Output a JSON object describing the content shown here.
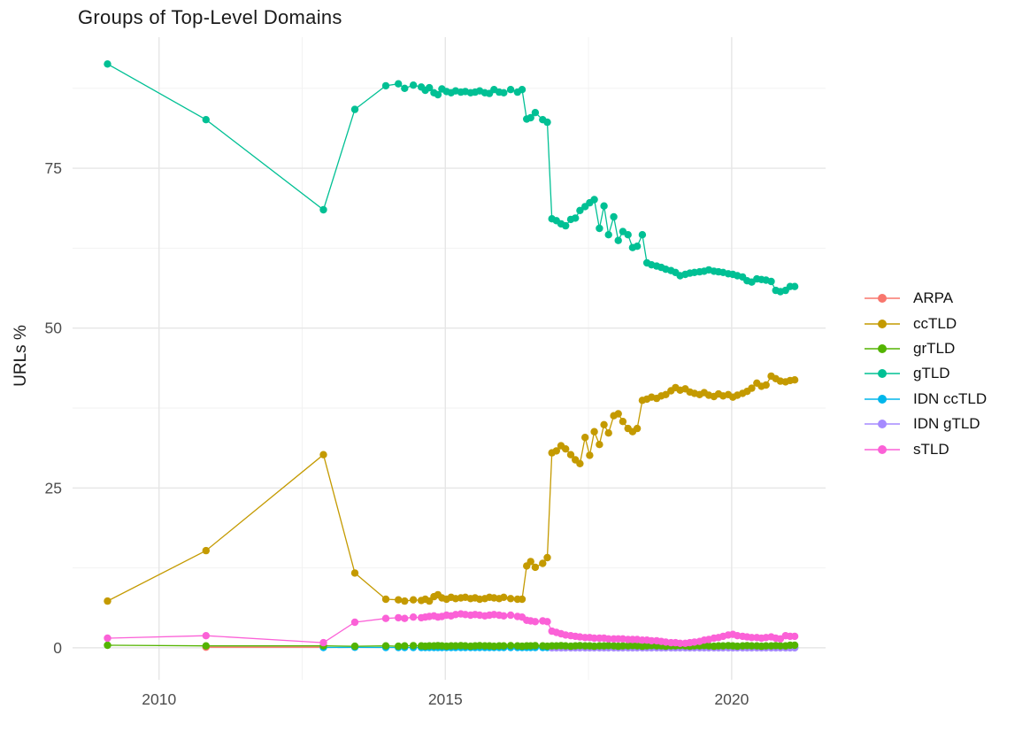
{
  "chart_data": {
    "type": "line",
    "title": "Groups of Top-Level Domains",
    "xlabel": "",
    "ylabel": "URLs %",
    "grid": true,
    "legend_position": "right",
    "x_ticks": [
      2010,
      2015,
      2020
    ],
    "x_minor_ticks": [
      2012.5,
      2017.5
    ],
    "y_ticks": [
      0,
      25,
      50,
      75
    ],
    "y_minor_ticks": [
      12.5,
      37.5,
      62.5,
      87.5
    ],
    "xlim": [
      2008.49,
      2021.64
    ],
    "ylim": [
      -5,
      95.5
    ],
    "x_dense": [
      2013.96,
      2014.18,
      2014.29,
      2014.44,
      2014.58,
      2014.65,
      2014.72,
      2014.8,
      2014.87,
      2014.94,
      2015.02,
      2015.1,
      2015.18,
      2015.27,
      2015.35,
      2015.44,
      2015.52,
      2015.6,
      2015.69,
      2015.77,
      2015.85,
      2015.94,
      2016.02,
      2016.14,
      2016.26,
      2016.34,
      2016.42,
      2016.49,
      2016.57,
      2016.7,
      2016.78,
      2016.86,
      2016.94,
      2017.02,
      2017.1,
      2017.19,
      2017.27,
      2017.35,
      2017.44,
      2017.52,
      2017.6,
      2017.69,
      2017.77,
      2017.85,
      2017.94,
      2018.02,
      2018.1,
      2018.19,
      2018.27,
      2018.35,
      2018.44,
      2018.52,
      2018.6,
      2018.69,
      2018.77,
      2018.85,
      2018.94,
      2019.02,
      2019.1,
      2019.19,
      2019.27,
      2019.35,
      2019.44,
      2019.52,
      2019.6,
      2019.69,
      2019.77,
      2019.85,
      2019.94,
      2020.02,
      2020.1,
      2020.19,
      2020.27,
      2020.35,
      2020.44,
      2020.52,
      2020.6,
      2020.69,
      2020.77,
      2020.85,
      2020.94,
      2021.02,
      2021.1
    ],
    "series": [
      {
        "name": "ARPA",
        "color": "#F8766D",
        "points": [
          [
            2010.82,
            0.1
          ],
          [
            2012.87,
            0.1
          ]
        ],
        "dense": null
      },
      {
        "name": "ccTLD",
        "color": "#C49A00",
        "points": [
          [
            2009.1,
            7.3
          ],
          [
            2010.82,
            15.2
          ],
          [
            2012.87,
            30.2
          ],
          [
            2013.42,
            11.7
          ]
        ],
        "dense": [
          7.6,
          7.5,
          7.3,
          7.5,
          7.4,
          7.6,
          7.3,
          8.0,
          8.3,
          7.8,
          7.6,
          7.9,
          7.7,
          7.8,
          7.9,
          7.7,
          7.8,
          7.6,
          7.7,
          7.9,
          7.8,
          7.7,
          7.9,
          7.7,
          7.6,
          7.6,
          12.8,
          13.5,
          12.6,
          13.2,
          14.1,
          30.5,
          30.8,
          31.6,
          31.1,
          30.2,
          29.4,
          28.8,
          32.9,
          30.1,
          33.8,
          31.8,
          34.9,
          33.6,
          36.3,
          36.6,
          35.4,
          34.3,
          33.8,
          34.3,
          38.7,
          38.9,
          39.2,
          39.0,
          39.4,
          39.6,
          40.2,
          40.7,
          40.3,
          40.5,
          40.0,
          39.8,
          39.6,
          39.9,
          39.5,
          39.3,
          39.7,
          39.4,
          39.6,
          39.2,
          39.5,
          39.8,
          40.1,
          40.6,
          41.4,
          40.9,
          41.1,
          42.5,
          42.1,
          41.7,
          41.6,
          41.8,
          41.9
        ]
      },
      {
        "name": "grTLD",
        "color": "#53B400",
        "points": [
          [
            2009.1,
            0.4
          ],
          [
            2010.82,
            0.3
          ],
          [
            2012.87,
            0.3
          ],
          [
            2013.42,
            0.25
          ]
        ],
        "dense": [
          0.3,
          0.25,
          0.3,
          0.35,
          0.3,
          0.25,
          0.3,
          0.3,
          0.35,
          0.3,
          0.25,
          0.3,
          0.3,
          0.35,
          0.3,
          0.25,
          0.3,
          0.35,
          0.3,
          0.3,
          0.25,
          0.3,
          0.3,
          0.35,
          0.3,
          0.25,
          0.3,
          0.3,
          0.35,
          0.3,
          0.25,
          0.3,
          0.3,
          0.35,
          0.3,
          0.25,
          0.3,
          0.35,
          0.3,
          0.3,
          0.25,
          0.3,
          0.3,
          0.35,
          0.3,
          0.25,
          0.3,
          0.3,
          0.35,
          0.3,
          0.25,
          0.3,
          0.35,
          0.3,
          0.3,
          0.25,
          0.3,
          0.3,
          0.35,
          0.3,
          0.25,
          0.3,
          0.3,
          0.35,
          0.3,
          0.25,
          0.3,
          0.3,
          0.35,
          0.3,
          0.25,
          0.3,
          0.35,
          0.3,
          0.3,
          0.25,
          0.3,
          0.3,
          0.35,
          0.3,
          0.3,
          0.4,
          0.4
        ]
      },
      {
        "name": "gTLD",
        "color": "#00C094",
        "points": [
          [
            2009.1,
            91.3
          ],
          [
            2010.82,
            82.6
          ],
          [
            2012.87,
            68.5
          ],
          [
            2013.42,
            84.2
          ]
        ],
        "dense": [
          87.9,
          88.2,
          87.5,
          88.0,
          87.7,
          87.2,
          87.6,
          86.8,
          86.5,
          87.4,
          87.0,
          86.8,
          87.1,
          86.9,
          87.0,
          86.8,
          86.9,
          87.1,
          86.8,
          86.7,
          87.3,
          86.9,
          86.8,
          87.3,
          86.9,
          87.3,
          82.7,
          82.9,
          83.7,
          82.6,
          82.2,
          67.1,
          66.8,
          66.3,
          66.0,
          67.0,
          67.2,
          68.4,
          69.0,
          69.6,
          70.1,
          65.6,
          69.1,
          64.6,
          67.4,
          63.7,
          65.1,
          64.6,
          62.6,
          62.8,
          64.6,
          60.2,
          59.9,
          59.7,
          59.5,
          59.2,
          59.0,
          58.7,
          58.2,
          58.4,
          58.6,
          58.7,
          58.8,
          58.9,
          59.1,
          58.9,
          58.8,
          58.7,
          58.5,
          58.4,
          58.2,
          58.0,
          57.4,
          57.2,
          57.7,
          57.6,
          57.5,
          57.3,
          55.9,
          55.7,
          55.9,
          56.5,
          56.5
        ]
      },
      {
        "name": "IDN ccTLD",
        "color": "#00B6EB",
        "points": [
          [
            2012.87,
            0.05
          ],
          [
            2013.42,
            0.08
          ]
        ],
        "dense": [
          0.05,
          0.05,
          0.05,
          0.05,
          0.05,
          0.05,
          0.05,
          0.05,
          0.05,
          0.05,
          0.05,
          0.05,
          0.05,
          0.05,
          0.05,
          0.05,
          0.05,
          0.05,
          0.05,
          0.05,
          0.05,
          0.05,
          0.05,
          0.05,
          0.05,
          0.05,
          0.05,
          0.05,
          0.05,
          0.05,
          0.05,
          0.05,
          0.05,
          0.05,
          0.05,
          0.05,
          0.05,
          0.05,
          0.05,
          0.05,
          0.05,
          0.05,
          0.05,
          0.05,
          0.05,
          0.05,
          0.05,
          0.05,
          0.05,
          0.05,
          0.05,
          0.05,
          0.05,
          0.05,
          0.05,
          0.05,
          0.05,
          0.05,
          0.05,
          0.05,
          0.05,
          0.05,
          0.05,
          0.05,
          0.05,
          0.05,
          0.05,
          0.05,
          0.05,
          0.05,
          0.05,
          0.05,
          0.05,
          0.05,
          0.05,
          0.05,
          0.05,
          0.05,
          0.05,
          0.05,
          0.05,
          0.05,
          0.05
        ]
      },
      {
        "name": "IDN gTLD",
        "color": "#A58AFF",
        "points": [],
        "dense": [
          null,
          null,
          null,
          null,
          null,
          null,
          null,
          null,
          null,
          null,
          null,
          null,
          null,
          null,
          null,
          null,
          null,
          null,
          null,
          null,
          null,
          null,
          null,
          null,
          null,
          null,
          null,
          null,
          null,
          null,
          null,
          0.0,
          0.0,
          0.0,
          0.0,
          0.0,
          0.0,
          0.0,
          0.0,
          0.0,
          0.0,
          0.0,
          0.0,
          0.0,
          0.0,
          0.0,
          0.0,
          0.0,
          0.0,
          0.0,
          0.0,
          0.0,
          0.0,
          0.0,
          0.0,
          0.0,
          0.0,
          0.0,
          0.0,
          0.0,
          0.0,
          0.0,
          0.0,
          0.0,
          0.0,
          0.0,
          0.0,
          0.0,
          0.0,
          0.0,
          0.0,
          0.0,
          0.0,
          0.0,
          0.0,
          0.0,
          0.0,
          0.0,
          0.0,
          0.0,
          0.0,
          0.0,
          0.0
        ]
      },
      {
        "name": "sTLD",
        "color": "#FB61D7",
        "points": [
          [
            2009.1,
            1.5
          ],
          [
            2010.82,
            1.9
          ],
          [
            2012.87,
            0.8
          ],
          [
            2013.42,
            4.0
          ]
        ],
        "dense": [
          4.6,
          4.7,
          4.6,
          4.8,
          4.7,
          4.8,
          4.9,
          5.0,
          4.8,
          4.9,
          5.1,
          5.0,
          5.2,
          5.3,
          5.2,
          5.1,
          5.2,
          5.1,
          5.0,
          5.1,
          5.2,
          5.1,
          5.0,
          5.1,
          4.9,
          4.8,
          4.3,
          4.2,
          4.1,
          4.2,
          4.1,
          2.6,
          2.4,
          2.2,
          2.0,
          1.9,
          1.8,
          1.7,
          1.6,
          1.6,
          1.5,
          1.5,
          1.5,
          1.4,
          1.4,
          1.4,
          1.4,
          1.3,
          1.3,
          1.3,
          1.2,
          1.2,
          1.1,
          1.1,
          1.0,
          0.9,
          0.8,
          0.8,
          0.7,
          0.7,
          0.8,
          0.9,
          1.0,
          1.2,
          1.3,
          1.5,
          1.6,
          1.8,
          2.0,
          2.1,
          1.9,
          1.8,
          1.7,
          1.6,
          1.6,
          1.5,
          1.6,
          1.7,
          1.5,
          1.4,
          1.9,
          1.8,
          1.8
        ]
      }
    ]
  },
  "style": {
    "grid_major_color": "#e6e6e6",
    "grid_minor_color": "#f2f2f2",
    "tick_label_color": "#4d4d4d",
    "title_color": "#1a1a1a",
    "background": "#ffffff"
  }
}
